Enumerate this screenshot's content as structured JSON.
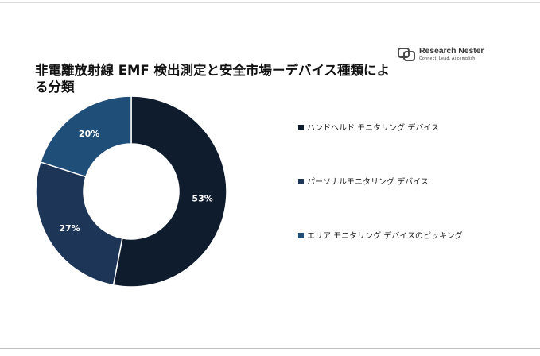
{
  "title": "非電離放射線 EMF 検出測定と安全市場ーデバイス種類による分類",
  "logo": {
    "name": "Research Nester",
    "tagline": "Connect. Lead. Accomplish"
  },
  "chart_data": {
    "type": "pie",
    "donut": true,
    "title": "非電離放射線 EMF 検出測定と安全市場ーデバイス種類による分類",
    "legend_position": "right",
    "categories": [
      "ハンドヘルド モニタリング デバイス",
      "パーソナルモニタリング デバイス",
      "エリア モニタリング デバイスのピッキング"
    ],
    "values": [
      53,
      27,
      20
    ],
    "value_labels": [
      "53%",
      "27%",
      "20%"
    ],
    "colors": [
      "#0f1c2e",
      "#1d3557",
      "#1f4e79"
    ]
  }
}
